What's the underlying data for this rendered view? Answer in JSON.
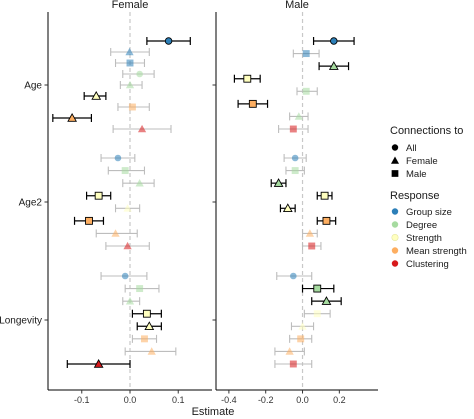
{
  "chart_data": {
    "type": "forest-plot",
    "xlabel": "Estimate",
    "ylabel": "",
    "panels": [
      {
        "name": "Female",
        "xlim": [
          -0.17,
          0.17
        ],
        "xticks": [
          -0.1,
          0.0,
          0.1
        ],
        "xtick_labels": [
          "-0.1",
          "0.0",
          "0.1"
        ]
      },
      {
        "name": "Male",
        "xlim": [
          -0.47,
          0.41
        ],
        "xticks": [
          -0.4,
          -0.2,
          0.0,
          0.2
        ],
        "xtick_labels": [
          "-0.4",
          "-0.2",
          "0.0",
          "0.2"
        ]
      }
    ],
    "predictors": [
      "Age",
      "Age2",
      "Longevity"
    ],
    "zero_line": 0,
    "connections": [
      {
        "name": "All",
        "shape": "circle"
      },
      {
        "name": "Female",
        "shape": "triangle"
      },
      {
        "name": "Male",
        "shape": "square"
      }
    ],
    "responses": [
      {
        "name": "Group size",
        "color": "#2c7fb8"
      },
      {
        "name": "Degree",
        "color": "#a6dba0"
      },
      {
        "name": "Strength",
        "color": "#ffffbf"
      },
      {
        "name": "Mean strength",
        "color": "#fdae61"
      },
      {
        "name": "Clustering",
        "color": "#d7191c"
      }
    ],
    "points": [
      {
        "panel": "Female",
        "predictor": "Age",
        "response": "Group size",
        "connection": "All",
        "estimate": 0.08,
        "lower": 0.035,
        "upper": 0.125,
        "significant": true
      },
      {
        "panel": "Female",
        "predictor": "Age",
        "response": "Group size",
        "connection": "Female",
        "estimate": -0.001,
        "lower": -0.04,
        "upper": 0.04,
        "significant": false
      },
      {
        "panel": "Female",
        "predictor": "Age",
        "response": "Group size",
        "connection": "Male",
        "estimate": 0.0,
        "lower": -0.03,
        "upper": 0.03,
        "significant": false
      },
      {
        "panel": "Female",
        "predictor": "Age",
        "response": "Degree",
        "connection": "All",
        "estimate": 0.02,
        "lower": -0.015,
        "upper": 0.05,
        "significant": false
      },
      {
        "panel": "Female",
        "predictor": "Age",
        "response": "Degree",
        "connection": "Female",
        "estimate": 0.0,
        "lower": -0.02,
        "upper": 0.025,
        "significant": false
      },
      {
        "panel": "Female",
        "predictor": "Age",
        "response": "Strength",
        "connection": "Female",
        "estimate": -0.07,
        "lower": -0.095,
        "upper": -0.05,
        "significant": true
      },
      {
        "panel": "Female",
        "predictor": "Age",
        "response": "Mean strength",
        "connection": "Male",
        "estimate": 0.005,
        "lower": -0.025,
        "upper": 0.04,
        "significant": false
      },
      {
        "panel": "Female",
        "predictor": "Age",
        "response": "Mean strength",
        "connection": "Female",
        "estimate": -0.12,
        "lower": -0.16,
        "upper": -0.08,
        "significant": true
      },
      {
        "panel": "Female",
        "predictor": "Age",
        "response": "Clustering",
        "connection": "Female",
        "estimate": 0.025,
        "lower": -0.035,
        "upper": 0.085,
        "significant": false
      },
      {
        "panel": "Female",
        "predictor": "Age2",
        "response": "Group size",
        "connection": "All",
        "estimate": -0.025,
        "lower": -0.06,
        "upper": 0.01,
        "significant": false
      },
      {
        "panel": "Female",
        "predictor": "Age2",
        "response": "Degree",
        "connection": "Male",
        "estimate": -0.01,
        "lower": -0.045,
        "upper": 0.03,
        "significant": false
      },
      {
        "panel": "Female",
        "predictor": "Age2",
        "response": "Degree",
        "connection": "Female",
        "estimate": 0.02,
        "lower": -0.015,
        "upper": 0.05,
        "significant": false
      },
      {
        "panel": "Female",
        "predictor": "Age2",
        "response": "Strength",
        "connection": "Male",
        "estimate": -0.065,
        "lower": -0.09,
        "upper": -0.04,
        "significant": true
      },
      {
        "panel": "Female",
        "predictor": "Age2",
        "response": "Strength",
        "connection": "Female",
        "estimate": -0.005,
        "lower": -0.03,
        "upper": 0.02,
        "significant": false
      },
      {
        "panel": "Female",
        "predictor": "Age2",
        "response": "Mean strength",
        "connection": "Male",
        "estimate": -0.085,
        "lower": -0.115,
        "upper": -0.055,
        "significant": true
      },
      {
        "panel": "Female",
        "predictor": "Age2",
        "response": "Mean strength",
        "connection": "Female",
        "estimate": -0.03,
        "lower": -0.07,
        "upper": 0.015,
        "significant": false
      },
      {
        "panel": "Female",
        "predictor": "Age2",
        "response": "Clustering",
        "connection": "Female",
        "estimate": -0.005,
        "lower": -0.05,
        "upper": 0.04,
        "significant": false
      },
      {
        "panel": "Female",
        "predictor": "Longevity",
        "response": "Group size",
        "connection": "All",
        "estimate": -0.01,
        "lower": -0.06,
        "upper": 0.035,
        "significant": false
      },
      {
        "panel": "Female",
        "predictor": "Longevity",
        "response": "Degree",
        "connection": "Male",
        "estimate": 0.02,
        "lower": -0.01,
        "upper": 0.06,
        "significant": false
      },
      {
        "panel": "Female",
        "predictor": "Longevity",
        "response": "Degree",
        "connection": "Female",
        "estimate": 0.0,
        "lower": -0.015,
        "upper": 0.02,
        "significant": false
      },
      {
        "panel": "Female",
        "predictor": "Longevity",
        "response": "Strength",
        "connection": "Male",
        "estimate": 0.035,
        "lower": 0.005,
        "upper": 0.065,
        "significant": true
      },
      {
        "panel": "Female",
        "predictor": "Longevity",
        "response": "Strength",
        "connection": "Female",
        "estimate": 0.04,
        "lower": 0.015,
        "upper": 0.065,
        "significant": true
      },
      {
        "panel": "Female",
        "predictor": "Longevity",
        "response": "Mean strength",
        "connection": "Male",
        "estimate": 0.03,
        "lower": 0.005,
        "upper": 0.055,
        "significant": false
      },
      {
        "panel": "Female",
        "predictor": "Longevity",
        "response": "Mean strength",
        "connection": "Female",
        "estimate": 0.045,
        "lower": -0.01,
        "upper": 0.095,
        "significant": false
      },
      {
        "panel": "Female",
        "predictor": "Longevity",
        "response": "Clustering",
        "connection": "Female",
        "estimate": -0.065,
        "lower": -0.13,
        "upper": 0.0,
        "significant": true
      },
      {
        "panel": "Male",
        "predictor": "Age",
        "response": "Group size",
        "connection": "All",
        "estimate": 0.17,
        "lower": 0.06,
        "upper": 0.28,
        "significant": true
      },
      {
        "panel": "Male",
        "predictor": "Age",
        "response": "Group size",
        "connection": "Male",
        "estimate": 0.02,
        "lower": -0.05,
        "upper": 0.09,
        "significant": false
      },
      {
        "panel": "Male",
        "predictor": "Age",
        "response": "Degree",
        "connection": "Female",
        "estimate": 0.17,
        "lower": 0.09,
        "upper": 0.25,
        "significant": true
      },
      {
        "panel": "Male",
        "predictor": "Age",
        "response": "Strength",
        "connection": "Male",
        "estimate": -0.3,
        "lower": -0.37,
        "upper": -0.23,
        "significant": true
      },
      {
        "panel": "Male",
        "predictor": "Age",
        "response": "Degree",
        "connection": "Male",
        "estimate": 0.02,
        "lower": -0.03,
        "upper": 0.08,
        "significant": false
      },
      {
        "panel": "Male",
        "predictor": "Age",
        "response": "Mean strength",
        "connection": "Male",
        "estimate": -0.27,
        "lower": -0.35,
        "upper": -0.19,
        "significant": true
      },
      {
        "panel": "Male",
        "predictor": "Age",
        "response": "Degree",
        "connection": "Female",
        "estimate": -0.02,
        "lower": -0.07,
        "upper": 0.03,
        "significant": false
      },
      {
        "panel": "Male",
        "predictor": "Age",
        "response": "Clustering",
        "connection": "Male",
        "estimate": -0.05,
        "lower": -0.13,
        "upper": 0.03,
        "significant": false
      },
      {
        "panel": "Male",
        "predictor": "Age2",
        "response": "Group size",
        "connection": "All",
        "estimate": -0.04,
        "lower": -0.1,
        "upper": 0.02,
        "significant": false
      },
      {
        "panel": "Male",
        "predictor": "Age2",
        "response": "Degree",
        "connection": "Male",
        "estimate": -0.04,
        "lower": -0.09,
        "upper": 0.01,
        "significant": false
      },
      {
        "panel": "Male",
        "predictor": "Age2",
        "response": "Degree",
        "connection": "Female",
        "estimate": -0.13,
        "lower": -0.17,
        "upper": -0.09,
        "significant": true
      },
      {
        "panel": "Male",
        "predictor": "Age2",
        "response": "Strength",
        "connection": "Male",
        "estimate": 0.12,
        "lower": 0.08,
        "upper": 0.16,
        "significant": true
      },
      {
        "panel": "Male",
        "predictor": "Age2",
        "response": "Strength",
        "connection": "Female",
        "estimate": -0.08,
        "lower": -0.12,
        "upper": -0.04,
        "significant": true
      },
      {
        "panel": "Male",
        "predictor": "Age2",
        "response": "Mean strength",
        "connection": "Male",
        "estimate": 0.13,
        "lower": 0.08,
        "upper": 0.18,
        "significant": true
      },
      {
        "panel": "Male",
        "predictor": "Age2",
        "response": "Mean strength",
        "connection": "Female",
        "estimate": 0.04,
        "lower": 0.0,
        "upper": 0.08,
        "significant": false
      },
      {
        "panel": "Male",
        "predictor": "Age2",
        "response": "Clustering",
        "connection": "Male",
        "estimate": 0.05,
        "lower": 0.0,
        "upper": 0.1,
        "significant": false
      },
      {
        "panel": "Male",
        "predictor": "Longevity",
        "response": "Group size",
        "connection": "All",
        "estimate": -0.05,
        "lower": -0.14,
        "upper": 0.05,
        "significant": false
      },
      {
        "panel": "Male",
        "predictor": "Longevity",
        "response": "Degree",
        "connection": "Male",
        "estimate": 0.08,
        "lower": 0.0,
        "upper": 0.17,
        "significant": true
      },
      {
        "panel": "Male",
        "predictor": "Longevity",
        "response": "Degree",
        "connection": "Female",
        "estimate": 0.13,
        "lower": 0.05,
        "upper": 0.21,
        "significant": true
      },
      {
        "panel": "Male",
        "predictor": "Longevity",
        "response": "Strength",
        "connection": "Male",
        "estimate": 0.08,
        "lower": 0.01,
        "upper": 0.15,
        "significant": false
      },
      {
        "panel": "Male",
        "predictor": "Longevity",
        "response": "Strength",
        "connection": "Female",
        "estimate": 0.0,
        "lower": -0.06,
        "upper": 0.06,
        "significant": false
      },
      {
        "panel": "Male",
        "predictor": "Longevity",
        "response": "Mean strength",
        "connection": "Male",
        "estimate": -0.01,
        "lower": -0.07,
        "upper": 0.05,
        "significant": false
      },
      {
        "panel": "Male",
        "predictor": "Longevity",
        "response": "Mean strength",
        "connection": "Female",
        "estimate": -0.07,
        "lower": -0.15,
        "upper": 0.01,
        "significant": false
      },
      {
        "panel": "Male",
        "predictor": "Longevity",
        "response": "Clustering",
        "connection": "Male",
        "estimate": -0.05,
        "lower": -0.15,
        "upper": 0.05,
        "significant": false
      }
    ],
    "legend": {
      "placement": "right",
      "connections_title": "Connections to",
      "response_title": "Response"
    }
  }
}
